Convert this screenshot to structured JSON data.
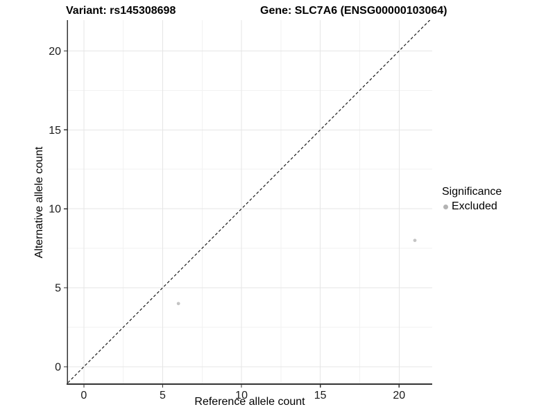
{
  "titles": {
    "variant": "Variant: rs145308698",
    "gene": "Gene: SLC7A6 (ENSG00000103064)"
  },
  "chart_data": {
    "type": "scatter",
    "title": "Variant: rs145308698   Gene: SLC7A6 (ENSG00000103064)",
    "xlabel": "Reference allele count",
    "ylabel": "Alternative allele count",
    "xlim": [
      -1.05,
      22.1
    ],
    "ylim": [
      -1.1,
      21.95
    ],
    "xticks": [
      0,
      5,
      10,
      15,
      20
    ],
    "yticks": [
      0,
      5,
      10,
      15,
      20
    ],
    "xminor": [
      2.5,
      7.5,
      12.5,
      17.5
    ],
    "yminor": [
      2.5,
      7.5,
      12.5,
      17.5
    ],
    "grid": "major+minor",
    "legend_position": "right",
    "identity_line": {
      "slope": 1,
      "intercept": 0,
      "style": "dashed"
    },
    "series": [
      {
        "name": "Excluded",
        "color": "#c4c4c4",
        "point_radius": 2.4,
        "points": [
          {
            "x": 6,
            "y": 4
          },
          {
            "x": 21,
            "y": 8
          }
        ]
      }
    ],
    "colors": {
      "background": "#ffffff",
      "grid_major": "#e5e5e5",
      "grid_minor": "#f2f2f2",
      "axis": "#333333",
      "tick_text": "#1a1a1a",
      "identity_line": "#1a1a1a",
      "legend_key": "#b3b3b3"
    }
  },
  "legend": {
    "title": "Significance",
    "entries": [
      {
        "label": "Excluded",
        "color": "#b3b3b3"
      }
    ]
  }
}
